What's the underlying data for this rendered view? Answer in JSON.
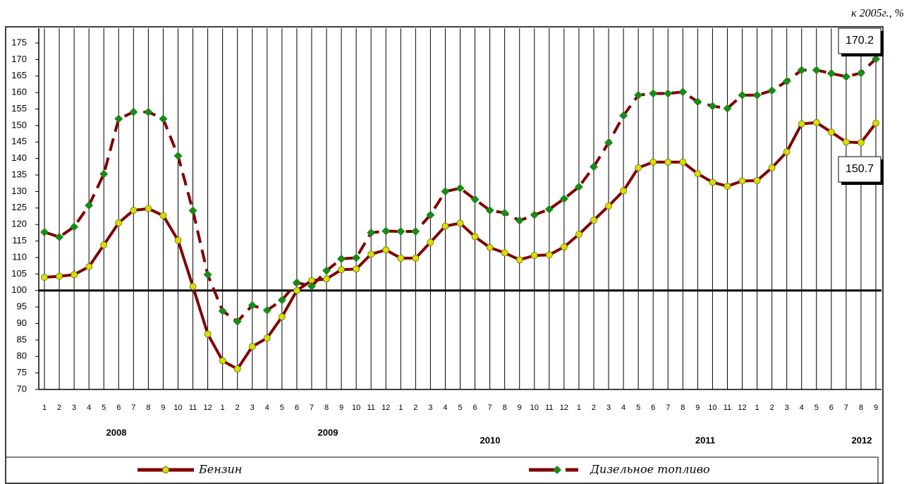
{
  "chart_data": {
    "type": "line",
    "y_label": "к 2005г., %",
    "categories": [
      "1",
      "2",
      "3",
      "4",
      "5",
      "6",
      "7",
      "8",
      "9",
      "10",
      "11",
      "12",
      "1",
      "2",
      "3",
      "4",
      "5",
      "6",
      "7",
      "8",
      "9",
      "10",
      "11",
      "12",
      "1",
      "2",
      "3",
      "4",
      "5",
      "6",
      "7",
      "8",
      "9",
      "10",
      "11",
      "12",
      "1",
      "2",
      "3",
      "4",
      "5",
      "6",
      "7",
      "8",
      "9",
      "10",
      "11",
      "12",
      "1",
      "2",
      "3",
      "4",
      "5",
      "6",
      "7",
      "8",
      "9"
    ],
    "years": [
      "2008",
      "2009",
      "2010",
      "2011",
      "2012"
    ],
    "series": [
      {
        "name": "Бензин",
        "color": "#800000",
        "marker_color": "#d4e000",
        "values": [
          104,
          104.3,
          104.8,
          107.2,
          113.8,
          120.5,
          124.3,
          124.8,
          122.7,
          115.2,
          101.2,
          86.8,
          78.7,
          76.2,
          83,
          85.6,
          92,
          100,
          103,
          103.5,
          106.3,
          106.5,
          111,
          112.3,
          109.8,
          109.8,
          114.6,
          119.5,
          120.4,
          116.3,
          113,
          111.4,
          109.3,
          110.6,
          110.8,
          113.2,
          117,
          121.3,
          125.6,
          130.2,
          137.2,
          138.9,
          138.9,
          138.9,
          135.4,
          132.8,
          131.6,
          133.2,
          133.3,
          137.2,
          142,
          150.5,
          150.9,
          148,
          145,
          144.8,
          150.7
        ]
      },
      {
        "name": "Дизельное топливо",
        "color": "#800000",
        "marker_color": "#1a8a1a",
        "dashed": true,
        "values": [
          117.7,
          116.2,
          119.3,
          125.8,
          135.3,
          152,
          154.1,
          154.1,
          152,
          140.8,
          124.2,
          104.8,
          93.8,
          90.6,
          95.5,
          94,
          97.1,
          102.4,
          101.3,
          106,
          109.6,
          109.9,
          117.5,
          118,
          117.9,
          117.9,
          122.9,
          130,
          131,
          127.6,
          124.3,
          123.5,
          121.2,
          122.9,
          124.6,
          127.8,
          131.4,
          137.5,
          144.8,
          153,
          159.2,
          159.7,
          159.7,
          160.2,
          157.2,
          155.9,
          155.2,
          159.2,
          159.2,
          160.6,
          163.4,
          166.8,
          166.8,
          165.8,
          164.8,
          165.9,
          170.2
        ]
      }
    ],
    "annotations": [
      "170.2",
      "150.7"
    ],
    "reference_line": 100,
    "ylim": [
      70,
      175
    ],
    "yticks": [
      70,
      75,
      80,
      85,
      90,
      95,
      100,
      105,
      110,
      115,
      120,
      125,
      130,
      135,
      140,
      145,
      150,
      155,
      160,
      165,
      170,
      175
    ],
    "grid": true
  }
}
